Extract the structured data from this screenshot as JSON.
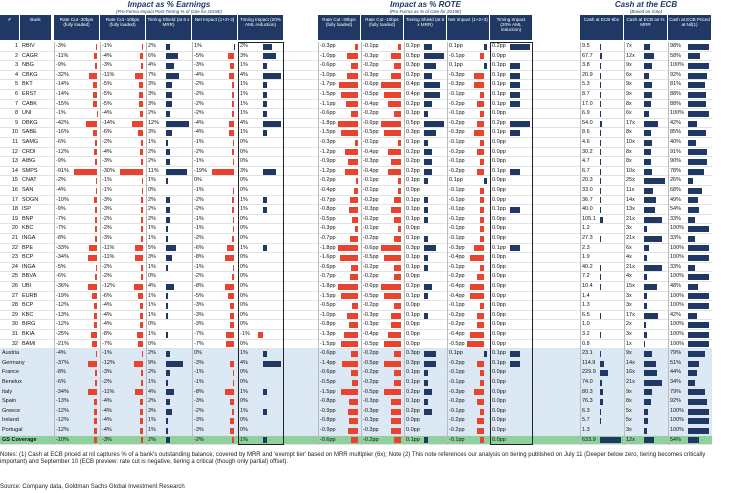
{
  "groups": [
    {
      "title": "Impact as % Earnings",
      "subtitle": "(Pro-Forma Impact Post-Tiering % of GSe for 2019E)"
    },
    {
      "title": "Impact as % ROTE",
      "subtitle": "(Pro-Forma as % of GSe for 2019E)"
    },
    {
      "title": "Cash at the ECB",
      "subtitle": "(Based on GSe)"
    }
  ],
  "table": {
    "columns": [
      "#",
      "Bank",
      "Rate Cut -30bps (fully loaded)",
      "Rate Cut -10bps (fully loaded)",
      "Tiering Shield (at 6 x MRR)",
      "Net Impact (1+2+3)",
      "Timing Impact (20% AML reduction)",
      "Rate Cut -30bps (fully loaded)",
      "Rate Cut -10bps (fully loaded)",
      "Tiering Shield (at 6 x MRR)",
      "Net Impact (1+2+3)",
      "Timing Impact (20% AML reduction)",
      "Cash at ECB €bn",
      "Cash at ECB as % MRR",
      "Cash at ECB Priced at Nil(1)"
    ],
    "rows": [
      {
        "num": "1",
        "bank": "RBIV",
        "cells": [
          "-3%",
          "-1%",
          "2%",
          "1%",
          "2%",
          "-0.3pp",
          "-0.1pp",
          "0.2pp",
          "0.1pp",
          "0.2pp",
          "9.5",
          "7x",
          "98%"
        ]
      },
      {
        "num": "2",
        "bank": "CAGR",
        "cells": [
          "-11%",
          "-4%",
          "6%",
          "-5%",
          "3%",
          "-1.0pp",
          "-0.3pp",
          "0.5pp",
          "-0.1pp",
          "0.0pp",
          "67.7",
          "12x",
          "58%"
        ]
      },
      {
        "num": "3",
        "bank": "NBG",
        "cells": [
          "-9%",
          "-3%",
          "4%",
          "-3%",
          "1%",
          "-0.6pp",
          "-0.2pp",
          "0.3pp",
          "0.1pp",
          "0.1pp",
          "3.8",
          "9x",
          "100%"
        ]
      },
      {
        "num": "4",
        "bank": "CBKG",
        "cells": [
          "-32%",
          "-11%",
          "7%",
          "-4%",
          "4%",
          "-1.0pp",
          "-0.3pp",
          "0.2pp",
          "-0.3pp",
          "0.1pp",
          "20.9",
          "6x",
          "92%"
        ]
      },
      {
        "num": "5",
        "bank": "BKT",
        "cells": [
          "-14%",
          "-5%",
          "3%",
          "-2%",
          "1%",
          "-1.7pp",
          "-0.6pp",
          "0.4pp",
          "-0.3pp",
          "0.1pp",
          "5.3",
          "9x",
          "81%"
        ]
      },
      {
        "num": "6",
        "bank": "ERST",
        "cells": [
          "-14%",
          "-5%",
          "3%",
          "-2%",
          "1%",
          "-1.5pp",
          "-0.5pp",
          "0.4pp",
          "-0.1pp",
          "0.1pp",
          "8.7",
          "9x",
          "88%"
        ]
      },
      {
        "num": "7",
        "bank": "CABK",
        "cells": [
          "-15%",
          "-5%",
          "3%",
          "-2%",
          "1%",
          "-1.1pp",
          "-0.4pp",
          "0.2pp",
          "-0.2pp",
          "0.1pp",
          "17.0",
          "8x",
          "88%"
        ]
      },
      {
        "num": "8",
        "bank": "UNI",
        "cells": [
          "-1%",
          "-4%",
          "2%",
          "-2%",
          "1%",
          "-0.6pp",
          "-0.2pp",
          "0.1pp",
          "-0.1pp",
          "0.0pp",
          "6.9",
          "6x",
          "100%"
        ]
      },
      {
        "num": "9",
        "bank": "DBKG",
        "cells": [
          "-42%",
          "-14%",
          "12%",
          "-4%",
          "4%",
          "-1.8pp",
          "-0.6pp",
          "0.5pp",
          "-0.2pp",
          "0.2pp",
          "54.0",
          "17x",
          "42%"
        ]
      },
      {
        "num": "10",
        "bank": "SABE",
        "cells": [
          "-16%",
          "-6%",
          "3%",
          "-4%",
          "1%",
          "-1.5pp",
          "-0.5pp",
          "0.3pp",
          "-0.3pp",
          "0.1pp",
          "8.6",
          "8x",
          "85%"
        ]
      },
      {
        "num": "11",
        "bank": "SAMG",
        "cells": [
          "-6%",
          "-2%",
          "1%",
          "-1%",
          "0%",
          "-0.3pp",
          "-0.1pp",
          "0.1pp",
          "-0.1pp",
          "0.0pp",
          "4.6",
          "10x",
          "40%"
        ]
      },
      {
        "num": "12",
        "bank": "CRDI",
        "cells": [
          "-12%",
          "-4%",
          "2%",
          "-2%",
          "0%",
          "-1.2pp",
          "-0.4pp",
          "0.2pp",
          "-0.2pp",
          "0.0pp",
          "30.2",
          "8x",
          "91%"
        ]
      },
      {
        "num": "13",
        "bank": "AIBG",
        "cells": [
          "-9%",
          "-3%",
          "2%",
          "-1%",
          "0%",
          "-0.9pp",
          "-0.3pp",
          "0.2pp",
          "-0.1pp",
          "0.0pp",
          "4.7",
          "8x",
          "90%"
        ]
      },
      {
        "num": "14",
        "bank": "SMPS",
        "cells": [
          "-91%",
          "-30%",
          "11%",
          "-19%",
          "3%",
          "-1.2pp",
          "-0.4pp",
          "0.2pp",
          "-0.2pp",
          "0.1pp",
          "6.7",
          "10x",
          "78%"
        ]
      },
      {
        "num": "15",
        "bank": "CNAT",
        "cells": [
          "-2%",
          "-1%",
          "1%",
          "0%",
          "0%",
          "-0.2pp",
          "-0.1pp",
          "0.1pp",
          "0.1pp",
          "0.0pp",
          "20.3",
          "25x",
          "26%"
        ]
      },
      {
        "num": "16",
        "bank": "SAN",
        "cells": [
          "-4%",
          "-1%",
          "0%",
          "-1%",
          "0%",
          "-0.4pp",
          "-0.1pp",
          "0.0pp",
          "-0.1pp",
          "0.0pp",
          "33.0",
          "11x",
          "68%"
        ]
      },
      {
        "num": "17",
        "bank": "SOGN",
        "cells": [
          "-10%",
          "-3%",
          "2%",
          "-2%",
          "1%",
          "-0.7pp",
          "-0.2pp",
          "0.1pp",
          "-0.1pp",
          "0.0pp",
          "36.7",
          "14x",
          "49%"
        ]
      },
      {
        "num": "18",
        "bank": "ISP",
        "cells": [
          "-9%",
          "-3%",
          "2%",
          "-2%",
          "1%",
          "-0.8pp",
          "-0.3pp",
          "0.1pp",
          "-0.1pp",
          "0.1pp",
          "40.0",
          "13x",
          "54%"
        ]
      },
      {
        "num": "19",
        "bank": "BNP",
        "cells": [
          "-7%",
          "-2%",
          "2%",
          "-1%",
          "0%",
          "-0.5pp",
          "-0.2pp",
          "0.1pp",
          "-0.1pp",
          "0.0pp",
          "105.1",
          "21x",
          "33%"
        ]
      },
      {
        "num": "20",
        "bank": "KBC",
        "cells": [
          "-7%",
          "-2%",
          "1%",
          "-1%",
          "0%",
          "-0.3pp",
          "-0.1pp",
          "0.0pp",
          "-0.1pp",
          "0.0pp",
          "1.2",
          "3x",
          "100%"
        ]
      },
      {
        "num": "21",
        "bank": "INGA",
        "cells": [
          "-8%",
          "-3%",
          "1%",
          "-2%",
          "0%",
          "-0.7pp",
          "-0.2pp",
          "0.1pp",
          "-0.1pp",
          "0.0pp",
          "27.3",
          "21x",
          "33%"
        ]
      },
      {
        "num": "22",
        "bank": "BPE",
        "cells": [
          "-33%",
          "-11%",
          "5%",
          "-6%",
          "1%",
          "-1.8pp",
          "-0.6pp",
          "0.3pp",
          "-0.3pp",
          "0.1pp",
          "2.3",
          "6x",
          "100%"
        ]
      },
      {
        "num": "23",
        "bank": "BCP",
        "cells": [
          "-34%",
          "-11%",
          "3%",
          "-8%",
          "0%",
          "-1.6pp",
          "-0.5pp",
          "0.1pp",
          "-0.4pp",
          "0.0pp",
          "1.9",
          "4x",
          "100%"
        ]
      },
      {
        "num": "24",
        "bank": "INGA",
        "cells": [
          "-5%",
          "-2%",
          "1%",
          "-1%",
          "0%",
          "-0.6pp",
          "-0.2pp",
          "0.1pp",
          "-0.1pp",
          "0.0pp",
          "40.2",
          "21x",
          "33%"
        ]
      },
      {
        "num": "25",
        "bank": "BBVA",
        "cells": [
          "-6%",
          "-2%",
          "0%",
          "-2%",
          "0%",
          "-0.7pp",
          "-0.2pp",
          "0.0pp",
          "-0.2pp",
          "0.0pp",
          "7.2",
          "4x",
          "100%"
        ]
      },
      {
        "num": "26",
        "bank": "UBI",
        "cells": [
          "-36%",
          "-12%",
          "4%",
          "-8%",
          "0%",
          "-1.8pp",
          "-0.6pp",
          "0.2pp",
          "-0.4pp",
          "0.0pp",
          "10.4",
          "15x",
          "48%"
        ]
      },
      {
        "num": "27",
        "bank": "EURB",
        "cells": [
          "-19%",
          "-6%",
          "1%",
          "-5%",
          "0%",
          "-1.5pp",
          "-0.5pp",
          "0.1pp",
          "-0.4pp",
          "0.0pp",
          "1.4",
          "3x",
          "100%"
        ]
      },
      {
        "num": "28",
        "bank": "BCP",
        "cells": [
          "-12%",
          "-4%",
          "1%",
          "-3%",
          "0%",
          "-0.5pp",
          "-0.2pp",
          "0.0pp",
          "-0.1pp",
          "0.0pp",
          "1.3",
          "3x",
          "100%"
        ]
      },
      {
        "num": "29",
        "bank": "KBC",
        "cells": [
          "-13%",
          "-4%",
          "1%",
          "-3%",
          "0%",
          "-1.0pp",
          "-0.3pp",
          "0.1pp",
          "-0.2pp",
          "0.0pp",
          "6.5",
          "17x",
          "42%"
        ]
      },
      {
        "num": "30",
        "bank": "BIRG",
        "cells": [
          "-12%",
          "-4%",
          "0%",
          "-3%",
          "0%",
          "-0.8pp",
          "-0.3pp",
          "0.0pp",
          "-0.2pp",
          "0.0pp",
          "1.0",
          "2x",
          "100%"
        ]
      },
      {
        "num": "31",
        "bank": "BKIA",
        "cells": [
          "-25%",
          "-8%",
          "1%",
          "-7%",
          "-1%",
          "-1.3pp",
          "-0.4pp",
          "0.0pp",
          "-0.4pp",
          "0.0pp",
          "3.2",
          "3x",
          "100%"
        ]
      },
      {
        "num": "32",
        "bank": "BAMI",
        "cells": [
          "-21%",
          "-7%",
          "0%",
          "-7%",
          "0%",
          "-1.5pp",
          "-0.5pp",
          "0.0pp",
          "-0.5pp",
          "0.0pp",
          "0.8",
          "1x",
          "100%"
        ]
      }
    ],
    "country_rows": [
      {
        "bank": "Austria",
        "cells": [
          "-4%",
          "-1%",
          "2%",
          "0%",
          "1%",
          "-0.6pp",
          "-0.2pp",
          "0.3pp",
          "0.1pp",
          "0.1pp",
          "23.1",
          "9x",
          "79%"
        ]
      },
      {
        "bank": "Germany",
        "cells": [
          "-37%",
          "-12%",
          "9%",
          "-3%",
          "4%",
          "-1.4pp",
          "-0.5pp",
          "0.3pp",
          "-0.2pp",
          "0.1pp",
          "114.9",
          "14x",
          "51%"
        ]
      },
      {
        "bank": "France",
        "cells": [
          "-8%",
          "-3%",
          "2%",
          "-1%",
          "0%",
          "-0.6pp",
          "-0.2pp",
          "0.1pp",
          "-0.1pp",
          "0.0pp",
          "229.9",
          "16x",
          "44%"
        ]
      },
      {
        "bank": "Benelux",
        "cells": [
          "-6%",
          "-2%",
          "1%",
          "-1%",
          "0%",
          "-0.5pp",
          "-0.2pp",
          "0.1pp",
          "-0.1pp",
          "0.0pp",
          "74.0",
          "21x",
          "34%"
        ]
      },
      {
        "bank": "Italy",
        "cells": [
          "-34%",
          "-11%",
          "4%",
          "-8%",
          "1%",
          "-1.5pp",
          "-0.5pp",
          "0.2pp",
          "-0.3pp",
          "0.0pp",
          "80.3",
          "9x",
          "79%"
        ]
      },
      {
        "bank": "Spain",
        "cells": [
          "-13%",
          "-4%",
          "2%",
          "-3%",
          "0%",
          "-0.8pp",
          "-0.3pp",
          "0.1pp",
          "-0.2pp",
          "0.0pp",
          "76.3",
          "8x",
          "92%"
        ]
      },
      {
        "bank": "Greece",
        "cells": [
          "-12%",
          "-4%",
          "3%",
          "-2%",
          "1%",
          "-0.9pp",
          "-0.3pp",
          "0.2pp",
          "-0.1pp",
          "0.0pp",
          "6.3",
          "5x",
          "100%"
        ]
      },
      {
        "bank": "Ireland",
        "cells": [
          "-12%",
          "-4%",
          "1%",
          "-3%",
          "0%",
          "-0.8pp",
          "-0.3pp",
          "0.0pp",
          "-0.2pp",
          "0.0pp",
          "5.7",
          "5x",
          "100%"
        ]
      },
      {
        "bank": "Portugal",
        "cells": [
          "-12%",
          "-4%",
          "1%",
          "-3%",
          "0%",
          "-0.9pp",
          "-0.3pp",
          "0.0pp",
          "-0.2pp",
          "0.0pp",
          "1.3",
          "3x",
          "100%"
        ]
      }
    ],
    "total_row": {
      "bank": "GS Coverage",
      "cells": [
        "-10%",
        "-3%",
        "2%",
        "-2%",
        "1%",
        "-0.6pp",
        "-0.2pp",
        "0.1pp",
        "-0.1pp",
        "0.0pp",
        "633.9",
        "12x",
        "54%"
      ]
    }
  },
  "notes": "Notes: (1) Cash at ECB priced at nil captures % of a bank's outstanding balance, covered by MRR and 'exempt tier' based on MRR multiplier (6x); Note (2) This note references our analysis on tiering published on July 11 (Deeper below zero, tiering becomes critically important) and September 10 (ECB preview: rate cut is negative, tiering a critical (though only partial) offset).",
  "source": "Source: Company data, Goldman Sachs Global Investment Research"
}
